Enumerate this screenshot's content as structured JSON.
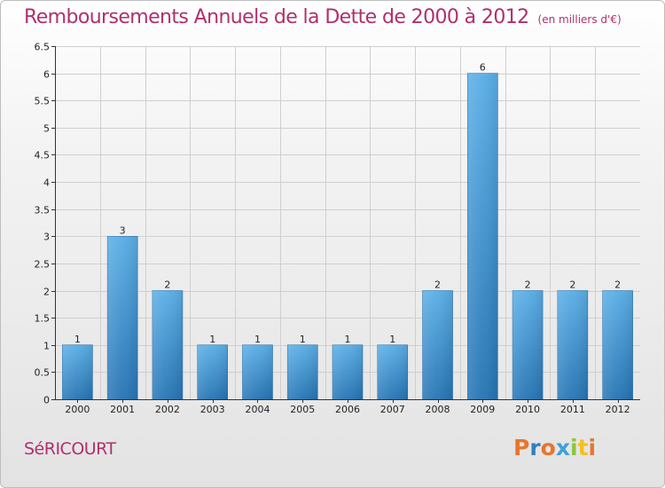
{
  "title": "Remboursements Annuels de la Dette de 2000 à 2012",
  "subtitle": "(en milliers d'€)",
  "city": "SéRICOURT",
  "logo": {
    "text": "Proxiti",
    "colors": [
      "#e8752b",
      "#2f7fc1",
      "#e8752b",
      "#3aa2d8",
      "#8cc63f",
      "#f2c11d",
      "#e8752b"
    ]
  },
  "colors": {
    "title": "#b0306e",
    "bar_top": "#5aaee6",
    "bar_bottom": "#2674b4",
    "grid": "#cfcfcf"
  },
  "chart_data": {
    "type": "bar",
    "title": "Remboursements Annuels de la Dette de 2000 à 2012",
    "subtitle": "(en milliers d'€)",
    "categories": [
      "2000",
      "2001",
      "2002",
      "2003",
      "2004",
      "2005",
      "2006",
      "2007",
      "2008",
      "2009",
      "2010",
      "2011",
      "2012"
    ],
    "values": [
      1,
      3,
      2,
      1,
      1,
      1,
      1,
      1,
      2,
      6,
      2,
      2,
      2
    ],
    "value_labels": [
      "1",
      "3",
      "2",
      "1",
      "1",
      "1",
      "1",
      "1",
      "2",
      "6",
      "2",
      "2",
      "2"
    ],
    "ylim": [
      0,
      6.5
    ],
    "yticks": [
      0,
      0.5,
      1,
      1.5,
      2,
      2.5,
      3,
      3.5,
      4,
      4.5,
      5,
      5.5,
      6,
      6.5
    ],
    "ytick_labels": [
      "0",
      "0.5",
      "1",
      "1.5",
      "2",
      "2.5",
      "3",
      "3.5",
      "4",
      "4.5",
      "5",
      "5.5",
      "6",
      "6.5"
    ],
    "grid": true,
    "xlabel": "",
    "ylabel": ""
  }
}
